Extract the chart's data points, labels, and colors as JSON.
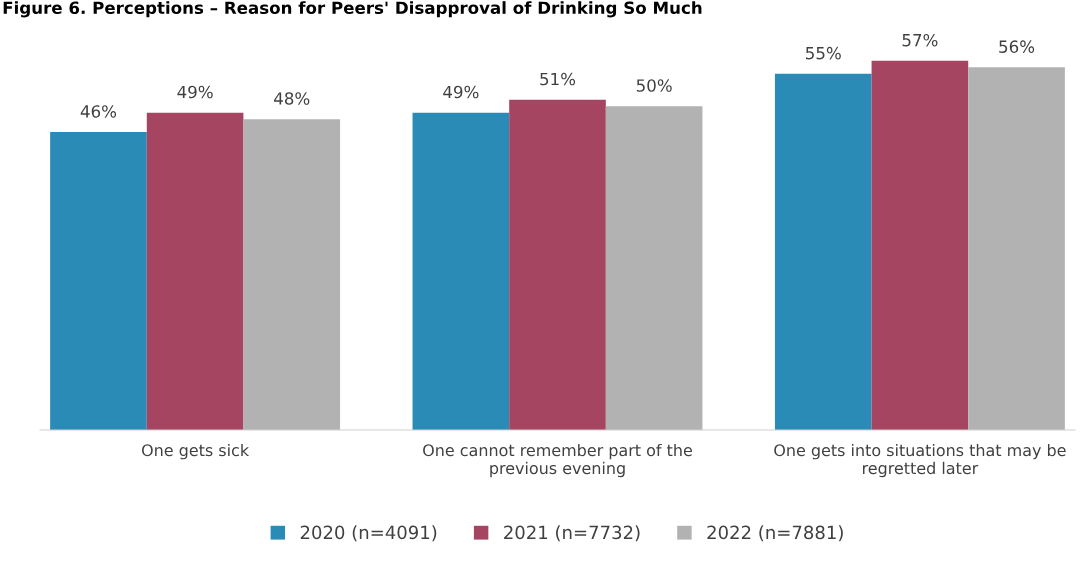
{
  "chart_data": {
    "type": "bar",
    "title": "Figure 6. Perceptions – Reason for Peers' Disapproval of Drinking So Much",
    "categories": [
      "One gets sick",
      "One cannot remember part of the previous evening",
      "One gets into situations that may be regretted later"
    ],
    "series": [
      {
        "name": "2020 (n=4091)",
        "color": "#2a8cb6",
        "values": [
          46,
          49,
          55
        ],
        "value_labels": [
          "46%",
          "49%",
          "55%"
        ]
      },
      {
        "name": "2021 (n=7732)",
        "color": "#a64562",
        "values": [
          49,
          51,
          57
        ],
        "value_labels": [
          "49%",
          "51%",
          "57%"
        ]
      },
      {
        "name": "2022 (n=7881)",
        "color": "#b2b2b2",
        "values": [
          48,
          50,
          56
        ],
        "value_labels": [
          "48%",
          "50%",
          "56%"
        ]
      }
    ],
    "legend": "bottom"
  }
}
